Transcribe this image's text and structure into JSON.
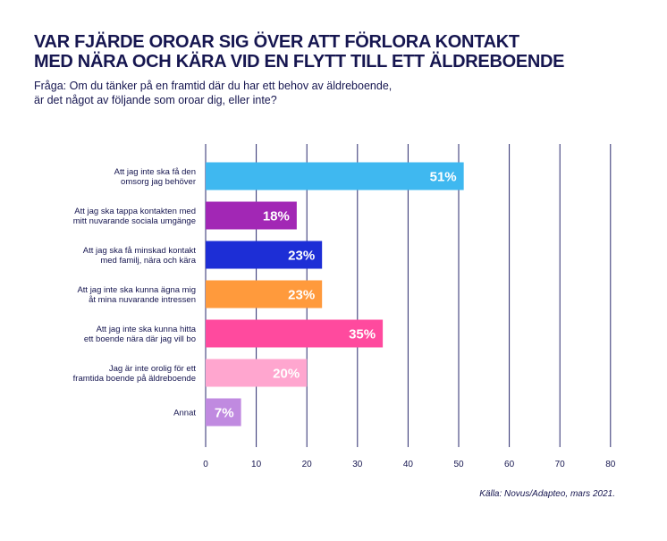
{
  "title_line1": "VAR FJÄRDE OROAR SIG ÖVER ATT FÖRLORA KONTAKT",
  "title_line2": "MED NÄRA OCH KÄRA VID EN FLYTT TILL ETT ÄLDREBOENDE",
  "subtitle_line1": "Fråga: Om du tänker på en framtid där du har ett behov av äldreboende,",
  "subtitle_line2": "är det något av följande som oroar dig, eller inte?",
  "source": "Källa: Novus/Adapteo, mars 2021.",
  "chart_data": {
    "type": "bar",
    "orientation": "horizontal",
    "categories": [
      [
        "Att jag inte ska få den",
        "omsorg jag behöver"
      ],
      [
        "Att jag ska tappa kontakten med",
        "mitt nuvarande sociala umgänge"
      ],
      [
        "Att jag ska få minskad kontakt",
        "med familj, nära och kära"
      ],
      [
        "Att jag inte ska kunna ägna mig",
        "åt mina nuvarande intressen"
      ],
      [
        "Att jag inte ska kunna hitta",
        "ett boende nära där jag vill bo"
      ],
      [
        "Jag är inte orolig för ett",
        "framtida boende på äldreboende"
      ],
      [
        "Annat"
      ]
    ],
    "values": [
      51,
      18,
      23,
      23,
      35,
      20,
      7
    ],
    "value_labels": [
      "51%",
      "18%",
      "23%",
      "23%",
      "35%",
      "20%",
      "7%"
    ],
    "colors": [
      "#3fb8f0",
      "#a227b5",
      "#1d2ed6",
      "#ff9a3c",
      "#ff4a9e",
      "#ffa6cf",
      "#c08ae0"
    ],
    "xlim": [
      0,
      80
    ],
    "xticks": [
      0,
      10,
      20,
      30,
      40,
      50,
      60,
      70,
      80
    ],
    "grid": true,
    "gridline_color": "#2a2a6e"
  }
}
